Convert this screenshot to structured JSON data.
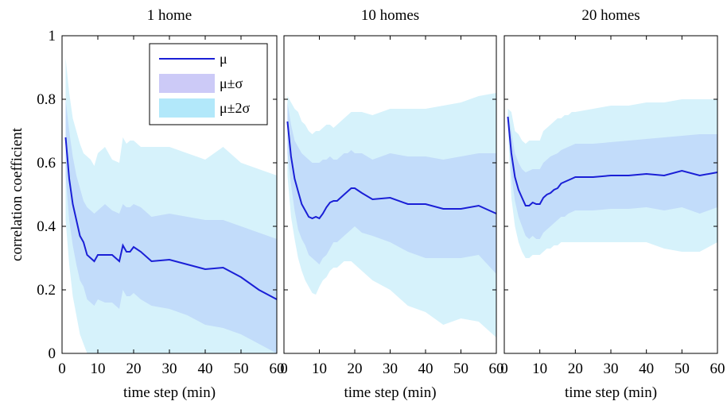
{
  "figure": {
    "ylabel": "correlation coefficient",
    "legend": {
      "placement": "top-right of first panel",
      "entries": [
        {
          "label": "μ",
          "kind": "line",
          "color": "#1a1fd6"
        },
        {
          "label": "μ±σ",
          "kind": "band",
          "color": "#cccaf7"
        },
        {
          "label": "μ±2σ",
          "kind": "band",
          "color": "#b2e8fa"
        }
      ]
    }
  },
  "colors": {
    "mean_line": "#1a1fd6",
    "band_1sigma": "#c2dcfa",
    "band_2sigma": "#d6f2fb"
  },
  "chart_data": [
    {
      "type": "line",
      "title": "1 home",
      "xlabel": "time step (min)",
      "ylabel": "correlation coefficient",
      "xlim": [
        0,
        60
      ],
      "ylim": [
        0,
        1
      ],
      "xticks": [
        "0",
        "10",
        "20",
        "30",
        "40",
        "50",
        "60"
      ],
      "yticks": [
        "0",
        "0.2",
        "0.4",
        "0.6",
        "0.8",
        "1"
      ],
      "grid": false,
      "x": [
        1,
        2,
        3,
        4,
        5,
        6,
        7,
        8,
        9,
        10,
        12,
        14,
        16,
        17,
        18,
        19,
        20,
        22,
        25,
        30,
        35,
        40,
        45,
        50,
        55,
        60
      ],
      "series": [
        {
          "name": "μ",
          "values": [
            0.68,
            0.55,
            0.47,
            0.42,
            0.37,
            0.35,
            0.31,
            0.3,
            0.29,
            0.31,
            0.31,
            0.31,
            0.29,
            0.34,
            0.32,
            0.32,
            0.335,
            0.32,
            0.29,
            0.295,
            0.28,
            0.265,
            0.27,
            0.24,
            0.2,
            0.17
          ]
        },
        {
          "name": "μ+σ",
          "values": [
            0.8,
            0.7,
            0.62,
            0.56,
            0.52,
            0.48,
            0.46,
            0.45,
            0.44,
            0.45,
            0.47,
            0.45,
            0.44,
            0.47,
            0.46,
            0.46,
            0.47,
            0.46,
            0.43,
            0.44,
            0.43,
            0.42,
            0.42,
            0.4,
            0.38,
            0.36
          ]
        },
        {
          "name": "μ-σ",
          "values": [
            0.56,
            0.42,
            0.34,
            0.28,
            0.23,
            0.21,
            0.17,
            0.16,
            0.15,
            0.17,
            0.16,
            0.16,
            0.14,
            0.2,
            0.18,
            0.18,
            0.19,
            0.17,
            0.15,
            0.14,
            0.12,
            0.09,
            0.08,
            0.06,
            0.03,
            0.0
          ]
        },
        {
          "name": "μ+2σ",
          "values": [
            0.93,
            0.82,
            0.74,
            0.7,
            0.66,
            0.63,
            0.62,
            0.61,
            0.59,
            0.63,
            0.65,
            0.61,
            0.6,
            0.68,
            0.66,
            0.67,
            0.67,
            0.65,
            0.65,
            0.65,
            0.63,
            0.61,
            0.65,
            0.6,
            0.58,
            0.56
          ]
        },
        {
          "name": "μ-2σ",
          "values": [
            0.42,
            0.28,
            0.18,
            0.12,
            0.06,
            0.03,
            0.0,
            0.0,
            0.0,
            0.0,
            0.0,
            0.0,
            0.0,
            0.0,
            0.0,
            0.0,
            0.0,
            0.0,
            0.0,
            0.0,
            0.0,
            0.0,
            0.0,
            0.0,
            0.0,
            0.0
          ]
        }
      ]
    },
    {
      "type": "line",
      "title": "10 homes",
      "xlabel": "time step (min)",
      "xlim": [
        0,
        60
      ],
      "ylim": [
        0,
        1
      ],
      "xticks": [
        "0",
        "10",
        "20",
        "30",
        "40",
        "50",
        "60"
      ],
      "grid": false,
      "x": [
        1,
        2,
        3,
        4,
        5,
        6,
        7,
        8,
        9,
        10,
        11,
        12,
        13,
        14,
        15,
        16,
        17,
        18,
        19,
        20,
        22,
        25,
        30,
        35,
        40,
        45,
        50,
        55,
        60
      ],
      "series": [
        {
          "name": "μ",
          "values": [
            0.73,
            0.62,
            0.55,
            0.51,
            0.47,
            0.45,
            0.43,
            0.425,
            0.43,
            0.425,
            0.44,
            0.46,
            0.475,
            0.48,
            0.48,
            0.49,
            0.5,
            0.51,
            0.52,
            0.52,
            0.505,
            0.485,
            0.49,
            0.47,
            0.47,
            0.455,
            0.455,
            0.465,
            0.44
          ]
        },
        {
          "name": "μ+σ",
          "values": [
            0.79,
            0.72,
            0.67,
            0.65,
            0.63,
            0.62,
            0.61,
            0.6,
            0.6,
            0.6,
            0.61,
            0.61,
            0.62,
            0.61,
            0.61,
            0.62,
            0.63,
            0.63,
            0.64,
            0.63,
            0.63,
            0.61,
            0.63,
            0.62,
            0.62,
            0.61,
            0.62,
            0.63,
            0.63
          ]
        },
        {
          "name": "μ-σ",
          "values": [
            0.63,
            0.53,
            0.45,
            0.39,
            0.36,
            0.34,
            0.31,
            0.3,
            0.29,
            0.28,
            0.3,
            0.31,
            0.33,
            0.35,
            0.35,
            0.36,
            0.37,
            0.38,
            0.39,
            0.4,
            0.38,
            0.37,
            0.35,
            0.32,
            0.3,
            0.3,
            0.3,
            0.31,
            0.25
          ]
        },
        {
          "name": "μ+2σ",
          "values": [
            0.81,
            0.79,
            0.77,
            0.76,
            0.73,
            0.72,
            0.7,
            0.69,
            0.7,
            0.7,
            0.71,
            0.72,
            0.72,
            0.71,
            0.72,
            0.73,
            0.74,
            0.75,
            0.76,
            0.76,
            0.76,
            0.75,
            0.77,
            0.77,
            0.77,
            0.78,
            0.79,
            0.81,
            0.82
          ]
        },
        {
          "name": "μ-2σ",
          "values": [
            0.56,
            0.43,
            0.36,
            0.3,
            0.26,
            0.23,
            0.21,
            0.19,
            0.185,
            0.21,
            0.23,
            0.24,
            0.26,
            0.27,
            0.27,
            0.28,
            0.29,
            0.29,
            0.29,
            0.28,
            0.26,
            0.23,
            0.2,
            0.15,
            0.13,
            0.09,
            0.11,
            0.1,
            0.05
          ]
        }
      ]
    },
    {
      "type": "line",
      "title": "20 homes",
      "xlabel": "time step (min)",
      "xlim": [
        0,
        60
      ],
      "ylim": [
        0,
        1
      ],
      "xticks": [
        "0",
        "10",
        "20",
        "30",
        "40",
        "50",
        "60"
      ],
      "grid": false,
      "x": [
        1,
        2,
        3,
        4,
        5,
        6,
        7,
        8,
        9,
        10,
        11,
        12,
        13,
        14,
        15,
        16,
        17,
        18,
        19,
        20,
        25,
        30,
        35,
        40,
        45,
        50,
        55,
        60
      ],
      "series": [
        {
          "name": "μ",
          "values": [
            0.745,
            0.63,
            0.555,
            0.515,
            0.49,
            0.465,
            0.465,
            0.475,
            0.47,
            0.47,
            0.49,
            0.5,
            0.505,
            0.515,
            0.52,
            0.535,
            0.54,
            0.545,
            0.55,
            0.555,
            0.555,
            0.56,
            0.56,
            0.565,
            0.56,
            0.575,
            0.56,
            0.57
          ]
        },
        {
          "name": "μ+σ",
          "values": [
            0.76,
            0.7,
            0.63,
            0.6,
            0.58,
            0.57,
            0.575,
            0.58,
            0.58,
            0.58,
            0.6,
            0.61,
            0.62,
            0.625,
            0.63,
            0.64,
            0.645,
            0.65,
            0.655,
            0.66,
            0.66,
            0.665,
            0.67,
            0.675,
            0.68,
            0.685,
            0.69,
            0.69
          ]
        },
        {
          "name": "μ-σ",
          "values": [
            0.73,
            0.56,
            0.48,
            0.43,
            0.4,
            0.37,
            0.36,
            0.37,
            0.36,
            0.36,
            0.38,
            0.39,
            0.4,
            0.41,
            0.42,
            0.43,
            0.43,
            0.44,
            0.445,
            0.45,
            0.45,
            0.455,
            0.455,
            0.46,
            0.45,
            0.46,
            0.44,
            0.46
          ]
        },
        {
          "name": "μ+2σ",
          "values": [
            0.77,
            0.76,
            0.7,
            0.69,
            0.67,
            0.66,
            0.67,
            0.67,
            0.67,
            0.67,
            0.7,
            0.71,
            0.72,
            0.73,
            0.74,
            0.74,
            0.75,
            0.75,
            0.76,
            0.76,
            0.77,
            0.78,
            0.78,
            0.79,
            0.79,
            0.8,
            0.8,
            0.8
          ]
        },
        {
          "name": "μ-2σ",
          "values": [
            0.71,
            0.49,
            0.4,
            0.35,
            0.32,
            0.3,
            0.3,
            0.31,
            0.31,
            0.31,
            0.32,
            0.33,
            0.33,
            0.34,
            0.34,
            0.35,
            0.35,
            0.35,
            0.35,
            0.35,
            0.35,
            0.35,
            0.35,
            0.35,
            0.33,
            0.32,
            0.32,
            0.35
          ]
        }
      ]
    }
  ]
}
